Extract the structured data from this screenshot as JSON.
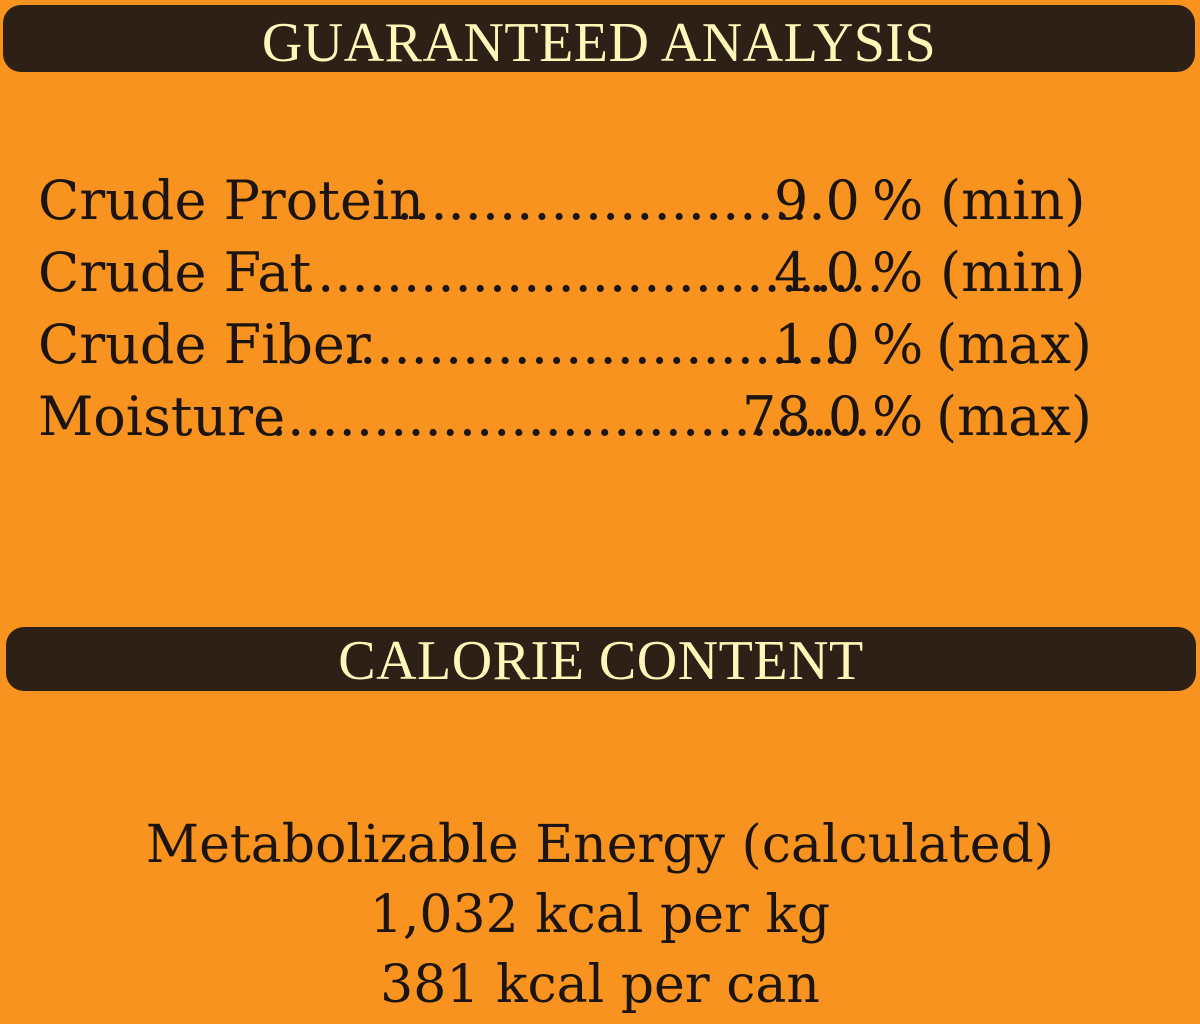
{
  "guaranteed_analysis": {
    "title": "GUARANTEED ANALYSIS",
    "rows": [
      {
        "label": "Crude Protein",
        "dots": "........................",
        "value": "9.0",
        "unit": "%",
        "qualifier": "(min)"
      },
      {
        "label": "Crude Fat",
        "dots": "..................................",
        "value": "4.0",
        "unit": "%",
        "qualifier": "(min)"
      },
      {
        "label": "Crude Fiber",
        "dots": "..............................",
        "value": "1.0",
        "unit": "%",
        "qualifier": "(max)"
      },
      {
        "label": "Moisture",
        "dots": "....................................",
        "value": "78.0",
        "unit": "%",
        "qualifier": "(max)"
      }
    ]
  },
  "calorie_content": {
    "title": "CALORIE CONTENT",
    "lines": [
      "Metabolizable Energy (calculated)",
      "1,032 kcal per kg",
      "381 kcal per can"
    ]
  },
  "colors": {
    "background": "#f7931e",
    "banner": "#2d2016",
    "banner_text": "#fff6b8",
    "body_text": "#1b1411"
  }
}
